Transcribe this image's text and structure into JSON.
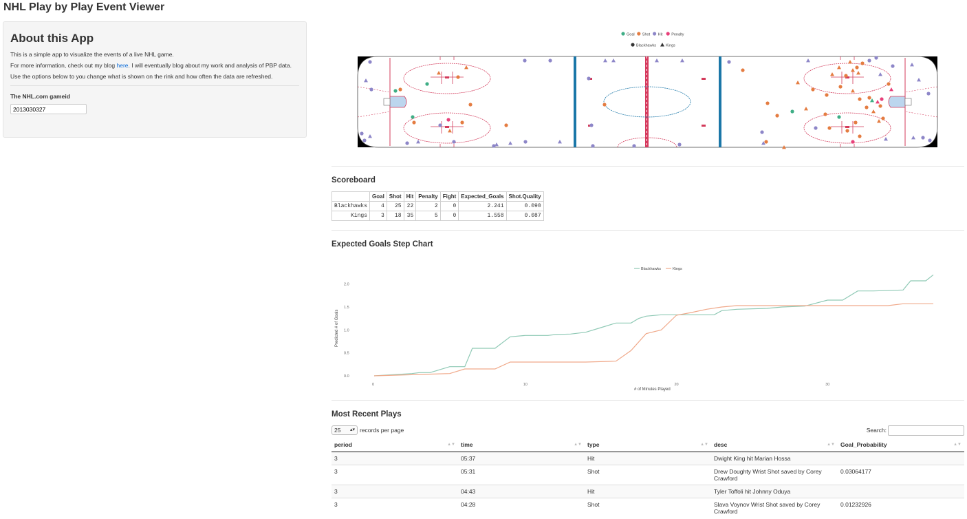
{
  "app": {
    "title": "NHL Play by Play Event Viewer"
  },
  "sidebar": {
    "heading": "About this App",
    "para1": "This is a simple app to visualize the events of a live NHL game.",
    "para2_pre": "For more information, check out my blog ",
    "para2_link": "here",
    "para2_post": ". I will eventually blog about my work and analysis of PBP data.",
    "para3": "Use the options below to you change what is shown on the rink and how often the data are refreshed.",
    "gameid_label": "The NHL.com gameid",
    "gameid_value": "2013030327"
  },
  "rink": {
    "legend_types": [
      {
        "label": "Goal",
        "color": "#3fae86"
      },
      {
        "label": "Shot",
        "color": "#e47c41"
      },
      {
        "label": "Hit",
        "color": "#8d86c8"
      },
      {
        "label": "Penalty",
        "color": "#e8407a"
      }
    ],
    "legend_teams": [
      {
        "label": "Blackhawks",
        "icon": "circle-icon"
      },
      {
        "label": "Kings",
        "icon": "triangle-icon"
      }
    ]
  },
  "scoreboard": {
    "title": "Scoreboard",
    "columns": [
      "Goal",
      "Shot",
      "Hit",
      "Penalty",
      "Fight",
      "Expected_Goals",
      "Shot.Quality"
    ],
    "rows": [
      {
        "team": "Blackhawks",
        "values": [
          "4",
          "25",
          "22",
          "2",
          "0",
          "2.241",
          "0.090"
        ]
      },
      {
        "team": "Kings",
        "values": [
          "3",
          "18",
          "35",
          "5",
          "0",
          "1.558",
          "0.087"
        ]
      }
    ]
  },
  "chart_data": {
    "type": "line",
    "title": "Expected Goals Step Chart",
    "xlabel": "# of Minutes Played",
    "ylabel": "Predicted # of Goals",
    "xlim": [
      0,
      37
    ],
    "ylim": [
      0,
      2.25
    ],
    "xticks": [
      0,
      10,
      20,
      30
    ],
    "yticks": [
      0.0,
      0.5,
      1.0,
      1.5,
      2.0
    ],
    "legend_position": "top",
    "series": [
      {
        "name": "Blackhawks",
        "color": "#8fc9b5",
        "points": [
          [
            0,
            0
          ],
          [
            2.5,
            0.05
          ],
          [
            3,
            0.07
          ],
          [
            3.7,
            0.07
          ],
          [
            4,
            0.1
          ],
          [
            5,
            0.2
          ],
          [
            6,
            0.2
          ],
          [
            6.5,
            0.6
          ],
          [
            7.5,
            0.6
          ],
          [
            8,
            0.6
          ],
          [
            9,
            0.85
          ],
          [
            10,
            0.88
          ],
          [
            11.5,
            0.88
          ],
          [
            12,
            0.9
          ],
          [
            13,
            0.91
          ],
          [
            14,
            0.95
          ],
          [
            15,
            1.05
          ],
          [
            16,
            1.15
          ],
          [
            17,
            1.15
          ],
          [
            17.5,
            1.25
          ],
          [
            18,
            1.3
          ],
          [
            19,
            1.33
          ],
          [
            20,
            1.33
          ],
          [
            22.5,
            1.33
          ],
          [
            23,
            1.42
          ],
          [
            24,
            1.45
          ],
          [
            26,
            1.47
          ],
          [
            27,
            1.5
          ],
          [
            28.5,
            1.52
          ],
          [
            30,
            1.65
          ],
          [
            31,
            1.65
          ],
          [
            32,
            1.85
          ],
          [
            33,
            1.85
          ],
          [
            35,
            1.87
          ],
          [
            35.5,
            2.07
          ],
          [
            36.5,
            2.07
          ],
          [
            37,
            2.2
          ]
        ]
      },
      {
        "name": "Kings",
        "color": "#f0a98a",
        "points": [
          [
            0,
            0
          ],
          [
            5,
            0.05
          ],
          [
            6,
            0.15
          ],
          [
            8,
            0.15
          ],
          [
            9,
            0.3
          ],
          [
            11,
            0.3
          ],
          [
            14,
            0.3
          ],
          [
            16,
            0.32
          ],
          [
            17,
            0.55
          ],
          [
            18,
            0.92
          ],
          [
            19,
            1.0
          ],
          [
            20,
            1.32
          ],
          [
            21,
            1.38
          ],
          [
            22,
            1.45
          ],
          [
            23,
            1.5
          ],
          [
            24,
            1.53
          ],
          [
            33,
            1.53
          ],
          [
            34,
            1.53
          ],
          [
            35,
            1.57
          ],
          [
            37,
            1.57
          ]
        ]
      }
    ]
  },
  "plays": {
    "title": "Most Recent Plays",
    "per_page_value": "25",
    "per_page_label": "records per page",
    "search_label": "Search:",
    "columns": [
      "period",
      "time",
      "type",
      "desc",
      "Goal_Probability"
    ],
    "rows": [
      {
        "period": "3",
        "time": "05:37",
        "type": "Hit",
        "desc": "Dwight King hit Marian Hossa",
        "prob": ""
      },
      {
        "period": "3",
        "time": "05:31",
        "type": "Shot",
        "desc": "Drew Doughty Wrist Shot saved by Corey Crawford",
        "prob": "0.03064177"
      },
      {
        "period": "3",
        "time": "04:43",
        "type": "Hit",
        "desc": "Tyler Toffoli hit Johnny Oduya",
        "prob": ""
      },
      {
        "period": "3",
        "time": "04:28",
        "type": "Shot",
        "desc": "Slava Voynov Wrist Shot saved by Corey Crawford",
        "prob": "0.01232926"
      }
    ]
  }
}
